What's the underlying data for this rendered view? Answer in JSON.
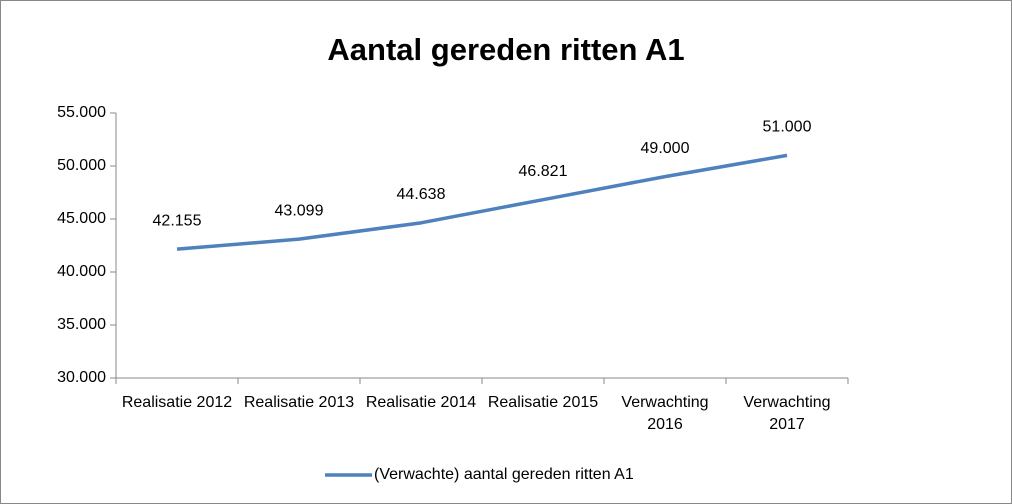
{
  "chart_data": {
    "type": "line",
    "title": "Aantal gereden ritten A1",
    "categories": [
      "Realisatie 2012",
      "Realisatie 2013",
      "Realisatie 2014",
      "Realisatie 2015",
      "Verwachting 2016",
      "Verwachting 2017"
    ],
    "series": [
      {
        "name": "(Verwachte) aantal gereden ritten A1",
        "color": "#4f81bd",
        "values": [
          42155,
          43099,
          44638,
          46821,
          49000,
          51000
        ],
        "value_labels": [
          "42.155",
          "43.099",
          "44.638",
          "46.821",
          "49.000",
          "51.000"
        ]
      }
    ],
    "ylim": [
      30000,
      55000
    ],
    "yticks": [
      {
        "value": 30000,
        "label": "30.000"
      },
      {
        "value": 35000,
        "label": "35.000"
      },
      {
        "value": 40000,
        "label": "40.000"
      },
      {
        "value": 45000,
        "label": "45.000"
      },
      {
        "value": 50000,
        "label": "50.000"
      },
      {
        "value": 55000,
        "label": "55.000"
      }
    ],
    "grid": false,
    "legend": "bottom"
  }
}
